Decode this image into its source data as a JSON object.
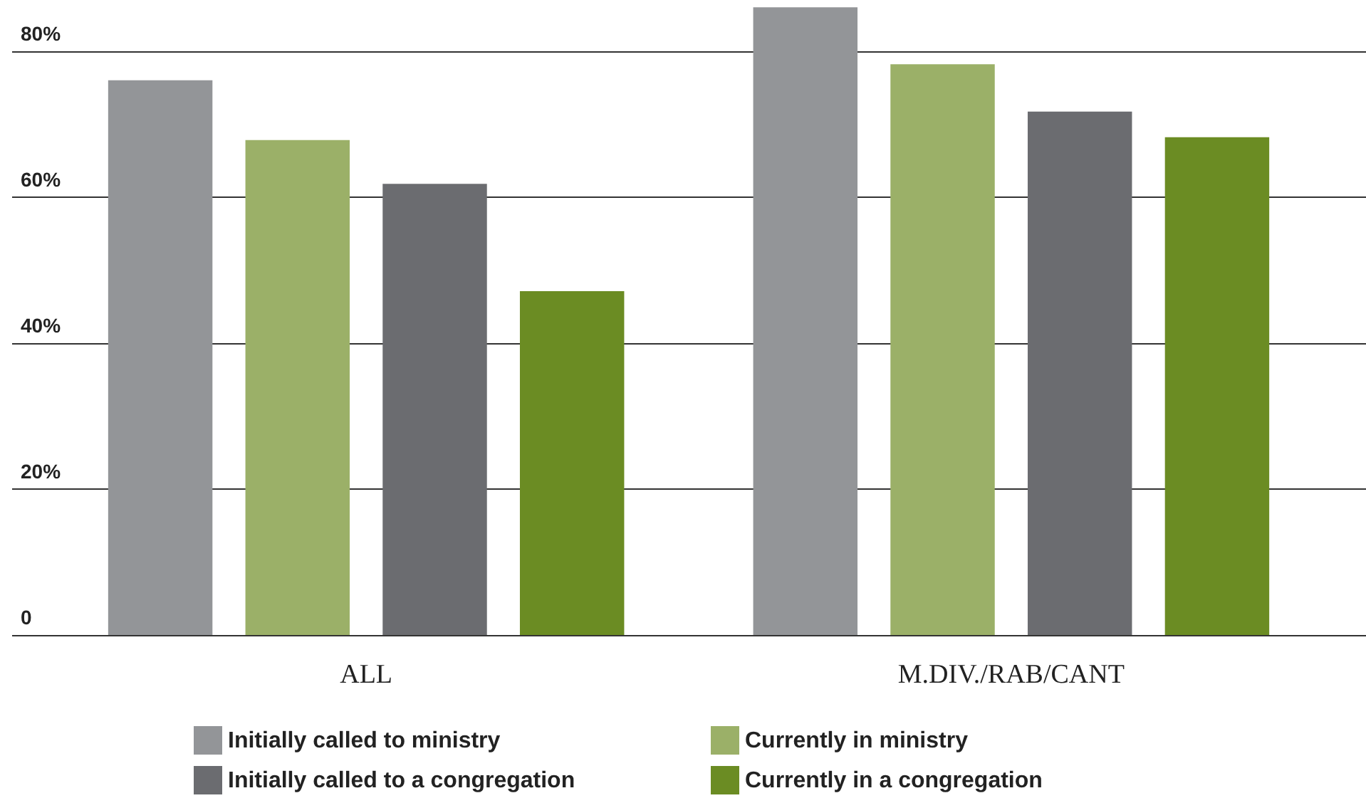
{
  "chart_data": {
    "type": "bar",
    "categories": [
      "ALL",
      "M.DIV./RAB/CANT"
    ],
    "series": [
      {
        "name": "Initially called to ministry",
        "color": "#939598",
        "values": [
          76,
          86
        ]
      },
      {
        "name": "Currently in ministry",
        "color": "#9bb068",
        "values": [
          67.8,
          78.2
        ]
      },
      {
        "name": "Initially called to a congregation",
        "color": "#6b6c70",
        "values": [
          61.8,
          71.7
        ]
      },
      {
        "name": "Currently in a congregation",
        "color": "#6b8c23",
        "values": [
          47.1,
          68.2
        ]
      }
    ],
    "ylim": [
      0,
      87
    ],
    "yticks": [
      {
        "value": 0,
        "label": "0"
      },
      {
        "value": 20,
        "label": "20%"
      },
      {
        "value": 40,
        "label": "40%"
      },
      {
        "value": 60,
        "label": "60%"
      },
      {
        "value": 80,
        "label": "80%"
      }
    ],
    "grid": "y",
    "legend": "bottom"
  }
}
